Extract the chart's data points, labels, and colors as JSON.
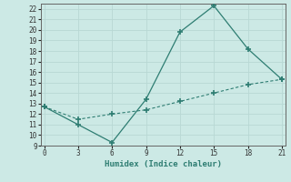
{
  "xlabel": "Humidex (Indice chaleur)",
  "line1_x": [
    0,
    3,
    6,
    9,
    12,
    15,
    18,
    21
  ],
  "line1_y": [
    12.7,
    11.0,
    9.3,
    13.4,
    19.8,
    22.3,
    18.2,
    15.3
  ],
  "line2_x": [
    0,
    3,
    6,
    9,
    12,
    15,
    18,
    21
  ],
  "line2_y": [
    12.7,
    11.5,
    12.0,
    12.4,
    13.2,
    14.0,
    14.8,
    15.3
  ],
  "line_color": "#2e7d72",
  "bg_color": "#cce9e5",
  "grid_color": "#b8d8d4",
  "ylim": [
    9,
    22.5
  ],
  "xlim": [
    -0.3,
    21.3
  ],
  "xticks": [
    0,
    3,
    6,
    9,
    12,
    15,
    18,
    21
  ],
  "yticks": [
    9,
    10,
    11,
    12,
    13,
    14,
    15,
    16,
    17,
    18,
    19,
    20,
    21,
    22
  ]
}
